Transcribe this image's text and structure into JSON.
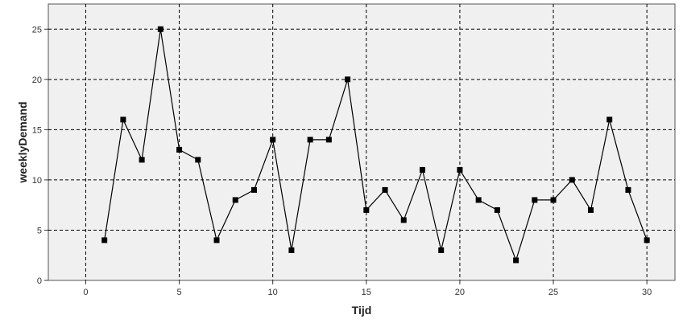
{
  "chart_data": {
    "type": "line",
    "xlabel": "Tijd",
    "ylabel": "weeklyDemand",
    "xlim": [
      -2,
      31.5
    ],
    "ylim": [
      0,
      27.5
    ],
    "x_ticks": [
      0,
      5,
      10,
      15,
      20,
      25,
      30
    ],
    "y_ticks": [
      0,
      5,
      10,
      15,
      20,
      25
    ],
    "grid": true,
    "marker": "square",
    "colors": {
      "plot_bg": "#f0f0f0",
      "line": "#000000",
      "grid": "#000000"
    },
    "series": [
      {
        "x": [
          1,
          2,
          3,
          4,
          5,
          6,
          7,
          8,
          9,
          10,
          11,
          12,
          13,
          14,
          15,
          16,
          17,
          18,
          19,
          20,
          21,
          22,
          23,
          24,
          25,
          26,
          27,
          28,
          29,
          30
        ],
        "values": [
          4,
          16,
          12,
          25,
          13,
          12,
          4,
          8,
          9,
          14,
          3,
          14,
          14,
          20,
          7,
          9,
          6,
          11,
          3,
          11,
          8,
          7,
          2,
          8,
          8,
          10,
          7,
          16,
          9,
          4
        ]
      }
    ]
  }
}
